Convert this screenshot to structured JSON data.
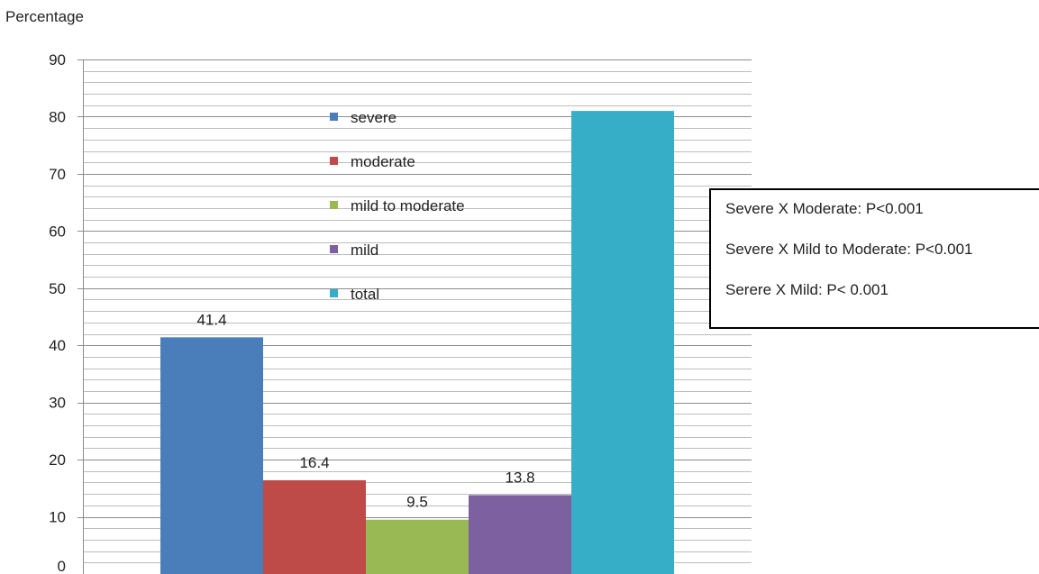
{
  "chart_data": {
    "type": "bar",
    "ylabel": "Percentage",
    "xlabel": "",
    "ylim": [
      0,
      90
    ],
    "yticks": [
      0,
      10,
      20,
      30,
      40,
      50,
      60,
      70,
      80,
      90
    ],
    "minor_gridline_step": 2,
    "grid": true,
    "legend_position": "top-center",
    "series": [
      {
        "name": "severe",
        "value": 41.4,
        "label": "41.4",
        "color": "#4a7ebb"
      },
      {
        "name": "moderate",
        "value": 16.4,
        "label": "16.4",
        "color": "#be4b48"
      },
      {
        "name": "mild to moderate",
        "value": 9.5,
        "label": "9.5",
        "color": "#98b954"
      },
      {
        "name": "mild",
        "value": 13.8,
        "label": "13.8",
        "color": "#7d60a0"
      },
      {
        "name": "total",
        "value": 81.0,
        "label": "",
        "color": "#37aec8"
      }
    ],
    "annotations": [
      "Severe X Moderate: P<0.001",
      "Severe X Mild to Moderate: P<0.001",
      "Serere X Mild: P< 0.001"
    ]
  }
}
